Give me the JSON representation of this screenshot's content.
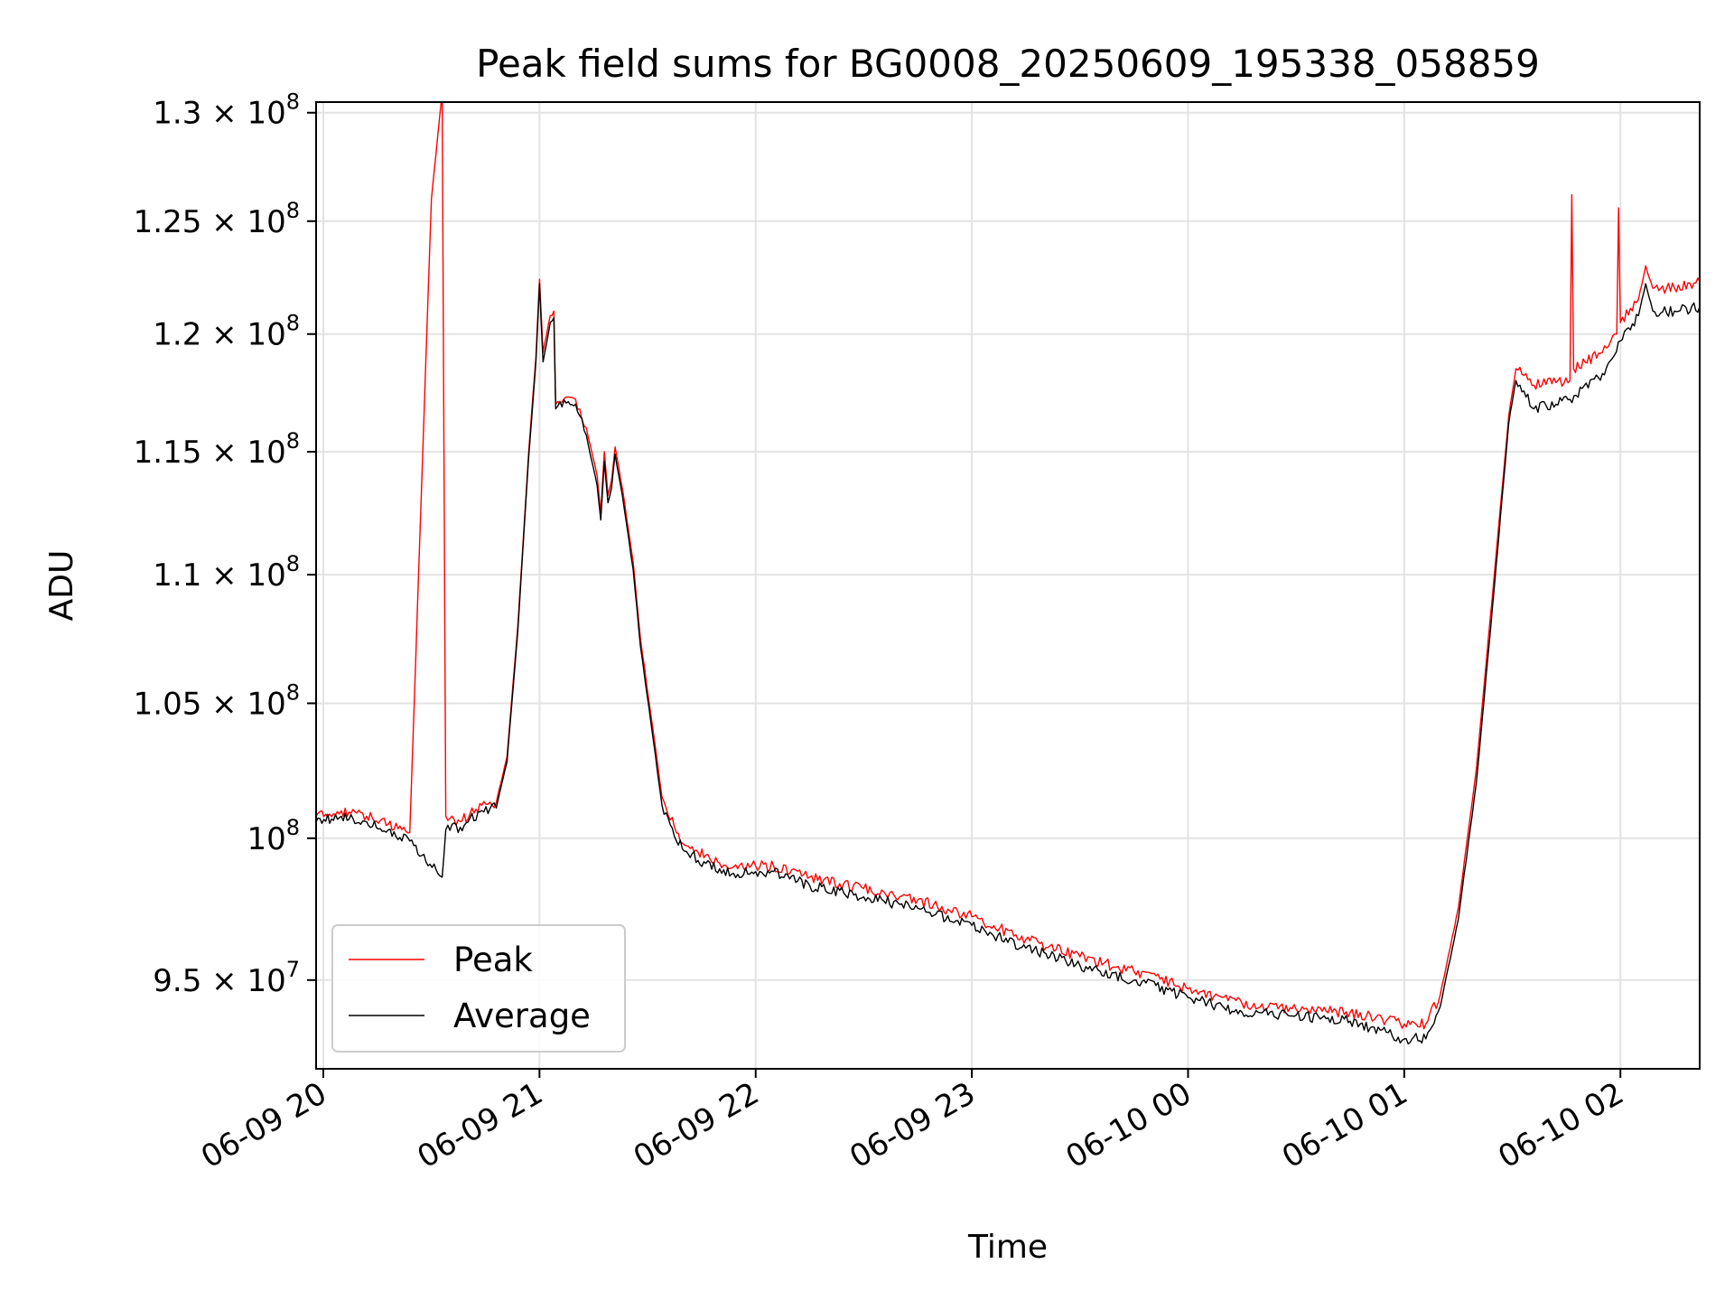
{
  "chart_data": {
    "type": "line",
    "title": "Peak field sums for BG0008_20250609_195338_058859",
    "xlabel": "Time",
    "ylabel": "ADU",
    "x_unit": "datetime",
    "xlim": [
      "2025-06-09 19:58:00",
      "2025-06-10 02:22:00"
    ],
    "ylim": [
      92000000,
      130500000
    ],
    "y_scale": "log",
    "grid": true,
    "legend_position": "lower-left",
    "x_ticks": [
      {
        "value": "2025-06-09 20:00",
        "label": "06-09 20"
      },
      {
        "value": "2025-06-09 21:00",
        "label": "06-09 21"
      },
      {
        "value": "2025-06-09 22:00",
        "label": "06-09 22"
      },
      {
        "value": "2025-06-09 23:00",
        "label": "06-09 23"
      },
      {
        "value": "2025-06-10 00:00",
        "label": "06-10 00"
      },
      {
        "value": "2025-06-10 01:00",
        "label": "06-10 01"
      },
      {
        "value": "2025-06-10 02:00",
        "label": "06-10 02"
      }
    ],
    "y_ticks": [
      {
        "value": 95000000,
        "mant": "9.5",
        "exp": "7"
      },
      {
        "value": 100000000,
        "mant": "",
        "exp": "8"
      },
      {
        "value": 105000000,
        "mant": "1.05",
        "exp": "8"
      },
      {
        "value": 110000000,
        "mant": "1.1",
        "exp": "8"
      },
      {
        "value": 115000000,
        "mant": "1.15",
        "exp": "8"
      },
      {
        "value": 120000000,
        "mant": "1.2",
        "exp": "8"
      },
      {
        "value": 125000000,
        "mant": "1.25",
        "exp": "8"
      },
      {
        "value": 130000000,
        "mant": "1.3",
        "exp": "8"
      }
    ],
    "series": [
      {
        "name": "Peak",
        "color": "#ff0000",
        "points": [
          [
            "2025-06-09 19:58:00",
            100800000
          ],
          [
            "2025-06-09 20:05:00",
            101000000
          ],
          [
            "2025-06-09 20:12:00",
            100800000
          ],
          [
            "2025-06-09 20:18:00",
            100500000
          ],
          [
            "2025-06-09 20:24:00",
            100200000
          ],
          [
            "2025-06-09 20:30:00",
            126000000
          ],
          [
            "2025-06-09 20:33:00",
            131000000
          ],
          [
            "2025-06-09 20:34:00",
            100800000
          ],
          [
            "2025-06-09 20:38:00",
            100600000
          ],
          [
            "2025-06-09 20:44:00",
            101200000
          ],
          [
            "2025-06-09 20:48:00",
            101300000
          ],
          [
            "2025-06-09 20:51:00",
            103000000
          ],
          [
            "2025-06-09 20:54:00",
            108000000
          ],
          [
            "2025-06-09 20:57:00",
            115000000
          ],
          [
            "2025-06-09 20:59:00",
            119000000
          ],
          [
            "2025-06-09 21:00:00",
            122400000
          ],
          [
            "2025-06-09 21:01:00",
            119200000
          ],
          [
            "2025-06-09 21:03:00",
            120800000
          ],
          [
            "2025-06-09 21:04:00",
            121000000
          ],
          [
            "2025-06-09 21:04:30",
            117000000
          ],
          [
            "2025-06-09 21:08:00",
            117300000
          ],
          [
            "2025-06-09 21:10:00",
            117200000
          ],
          [
            "2025-06-09 21:13:00",
            116000000
          ],
          [
            "2025-06-09 21:16:00",
            114000000
          ],
          [
            "2025-06-09 21:17:00",
            112500000
          ],
          [
            "2025-06-09 21:18:00",
            115000000
          ],
          [
            "2025-06-09 21:19:00",
            113200000
          ],
          [
            "2025-06-09 21:20:00",
            113800000
          ],
          [
            "2025-06-09 21:21:00",
            115200000
          ],
          [
            "2025-06-09 21:23:00",
            113500000
          ],
          [
            "2025-06-09 21:26:00",
            110500000
          ],
          [
            "2025-06-09 21:28:00",
            107500000
          ],
          [
            "2025-06-09 21:31:00",
            104500000
          ],
          [
            "2025-06-09 21:34:00",
            101500000
          ],
          [
            "2025-06-09 21:38:00",
            100200000
          ],
          [
            "2025-06-09 21:44:00",
            99500000
          ],
          [
            "2025-06-09 21:50:00",
            99100000
          ],
          [
            "2025-06-09 21:55:00",
            98900000
          ],
          [
            "2025-06-09 22:00:00",
            99000000
          ],
          [
            "2025-06-09 22:05:00",
            99000000
          ],
          [
            "2025-06-09 22:15:00",
            98600000
          ],
          [
            "2025-06-09 22:30:00",
            98200000
          ],
          [
            "2025-06-09 22:45:00",
            97800000
          ],
          [
            "2025-06-09 23:00:00",
            97200000
          ],
          [
            "2025-06-09 23:15:00",
            96400000
          ],
          [
            "2025-06-09 23:30:00",
            95800000
          ],
          [
            "2025-06-09 23:45:00",
            95300000
          ],
          [
            "2025-06-10 00:00:00",
            94700000
          ],
          [
            "2025-06-10 00:15:00",
            94200000
          ],
          [
            "2025-06-10 00:30:00",
            94000000
          ],
          [
            "2025-06-10 00:45:00",
            93900000
          ],
          [
            "2025-06-10 01:00:00",
            93500000
          ],
          [
            "2025-06-10 01:06:00",
            93500000
          ],
          [
            "2025-06-10 01:10:00",
            94500000
          ],
          [
            "2025-06-10 01:15:00",
            97500000
          ],
          [
            "2025-06-10 01:20:00",
            102500000
          ],
          [
            "2025-06-10 01:25:00",
            110000000
          ],
          [
            "2025-06-10 01:29:00",
            116500000
          ],
          [
            "2025-06-10 01:31:00",
            118500000
          ],
          [
            "2025-06-10 01:36:00",
            117800000
          ],
          [
            "2025-06-10 01:46:00",
            118000000
          ],
          [
            "2025-06-10 01:46:30",
            126200000
          ],
          [
            "2025-06-10 01:47:00",
            118500000
          ],
          [
            "2025-06-10 01:55:00",
            119200000
          ],
          [
            "2025-06-10 01:59:00",
            120000000
          ],
          [
            "2025-06-10 01:59:30",
            125600000
          ],
          [
            "2025-06-10 02:00:00",
            120500000
          ],
          [
            "2025-06-10 02:05:00",
            121500000
          ],
          [
            "2025-06-10 02:07:00",
            123000000
          ],
          [
            "2025-06-10 02:09:00",
            122000000
          ],
          [
            "2025-06-10 02:15:00",
            122000000
          ],
          [
            "2025-06-10 02:22:00",
            122300000
          ]
        ]
      },
      {
        "name": "Average",
        "color": "#000000",
        "points": [
          [
            "2025-06-09 19:58:00",
            100600000
          ],
          [
            "2025-06-09 20:05:00",
            100800000
          ],
          [
            "2025-06-09 20:12:00",
            100600000
          ],
          [
            "2025-06-09 20:18:00",
            100300000
          ],
          [
            "2025-06-09 20:24:00",
            99900000
          ],
          [
            "2025-06-09 20:33:00",
            98600000
          ],
          [
            "2025-06-09 20:34:00",
            100300000
          ],
          [
            "2025-06-09 20:38:00",
            100400000
          ],
          [
            "2025-06-09 20:44:00",
            101000000
          ],
          [
            "2025-06-09 20:48:00",
            101100000
          ],
          [
            "2025-06-09 20:51:00",
            102800000
          ],
          [
            "2025-06-09 20:54:00",
            107800000
          ],
          [
            "2025-06-09 20:57:00",
            114800000
          ],
          [
            "2025-06-09 20:59:00",
            118800000
          ],
          [
            "2025-06-09 21:00:00",
            122200000
          ],
          [
            "2025-06-09 21:01:00",
            118800000
          ],
          [
            "2025-06-09 21:03:00",
            120500000
          ],
          [
            "2025-06-09 21:04:00",
            120700000
          ],
          [
            "2025-06-09 21:04:30",
            116800000
          ],
          [
            "2025-06-09 21:08:00",
            117100000
          ],
          [
            "2025-06-09 21:10:00",
            117000000
          ],
          [
            "2025-06-09 21:13:00",
            115700000
          ],
          [
            "2025-06-09 21:16:00",
            113600000
          ],
          [
            "2025-06-09 21:17:00",
            112200000
          ],
          [
            "2025-06-09 21:18:00",
            114600000
          ],
          [
            "2025-06-09 21:19:00",
            112900000
          ],
          [
            "2025-06-09 21:20:00",
            113500000
          ],
          [
            "2025-06-09 21:21:00",
            114900000
          ],
          [
            "2025-06-09 21:23:00",
            113200000
          ],
          [
            "2025-06-09 21:26:00",
            110200000
          ],
          [
            "2025-06-09 21:28:00",
            107200000
          ],
          [
            "2025-06-09 21:31:00",
            104200000
          ],
          [
            "2025-06-09 21:34:00",
            101200000
          ],
          [
            "2025-06-09 21:38:00",
            99900000
          ],
          [
            "2025-06-09 21:44:00",
            99200000
          ],
          [
            "2025-06-09 21:50:00",
            98900000
          ],
          [
            "2025-06-09 21:55:00",
            98700000
          ],
          [
            "2025-06-09 22:00:00",
            98800000
          ],
          [
            "2025-06-09 22:05:00",
            98800000
          ],
          [
            "2025-06-09 22:15:00",
            98300000
          ],
          [
            "2025-06-09 22:30:00",
            97900000
          ],
          [
            "2025-06-09 22:45:00",
            97500000
          ],
          [
            "2025-06-09 23:00:00",
            96900000
          ],
          [
            "2025-06-09 23:15:00",
            96100000
          ],
          [
            "2025-06-09 23:30:00",
            95500000
          ],
          [
            "2025-06-09 23:45:00",
            95000000
          ],
          [
            "2025-06-10 00:00:00",
            94400000
          ],
          [
            "2025-06-10 00:15:00",
            93900000
          ],
          [
            "2025-06-10 00:30:00",
            93800000
          ],
          [
            "2025-06-10 00:45:00",
            93600000
          ],
          [
            "2025-06-10 01:00:00",
            93000000
          ],
          [
            "2025-06-10 01:06:00",
            93000000
          ],
          [
            "2025-06-10 01:10:00",
            94100000
          ],
          [
            "2025-06-10 01:15:00",
            97100000
          ],
          [
            "2025-06-10 01:20:00",
            102000000
          ],
          [
            "2025-06-10 01:25:00",
            109500000
          ],
          [
            "2025-06-10 01:29:00",
            116200000
          ],
          [
            "2025-06-10 01:31:00",
            118000000
          ],
          [
            "2025-06-10 01:36:00",
            116800000
          ],
          [
            "2025-06-10 01:46:00",
            117200000
          ],
          [
            "2025-06-10 01:55:00",
            118300000
          ],
          [
            "2025-06-10 02:00:00",
            119700000
          ],
          [
            "2025-06-10 02:05:00",
            120800000
          ],
          [
            "2025-06-10 02:07:00",
            122200000
          ],
          [
            "2025-06-10 02:09:00",
            121000000
          ],
          [
            "2025-06-10 02:15:00",
            121000000
          ],
          [
            "2025-06-10 02:22:00",
            121200000
          ]
        ]
      }
    ]
  }
}
